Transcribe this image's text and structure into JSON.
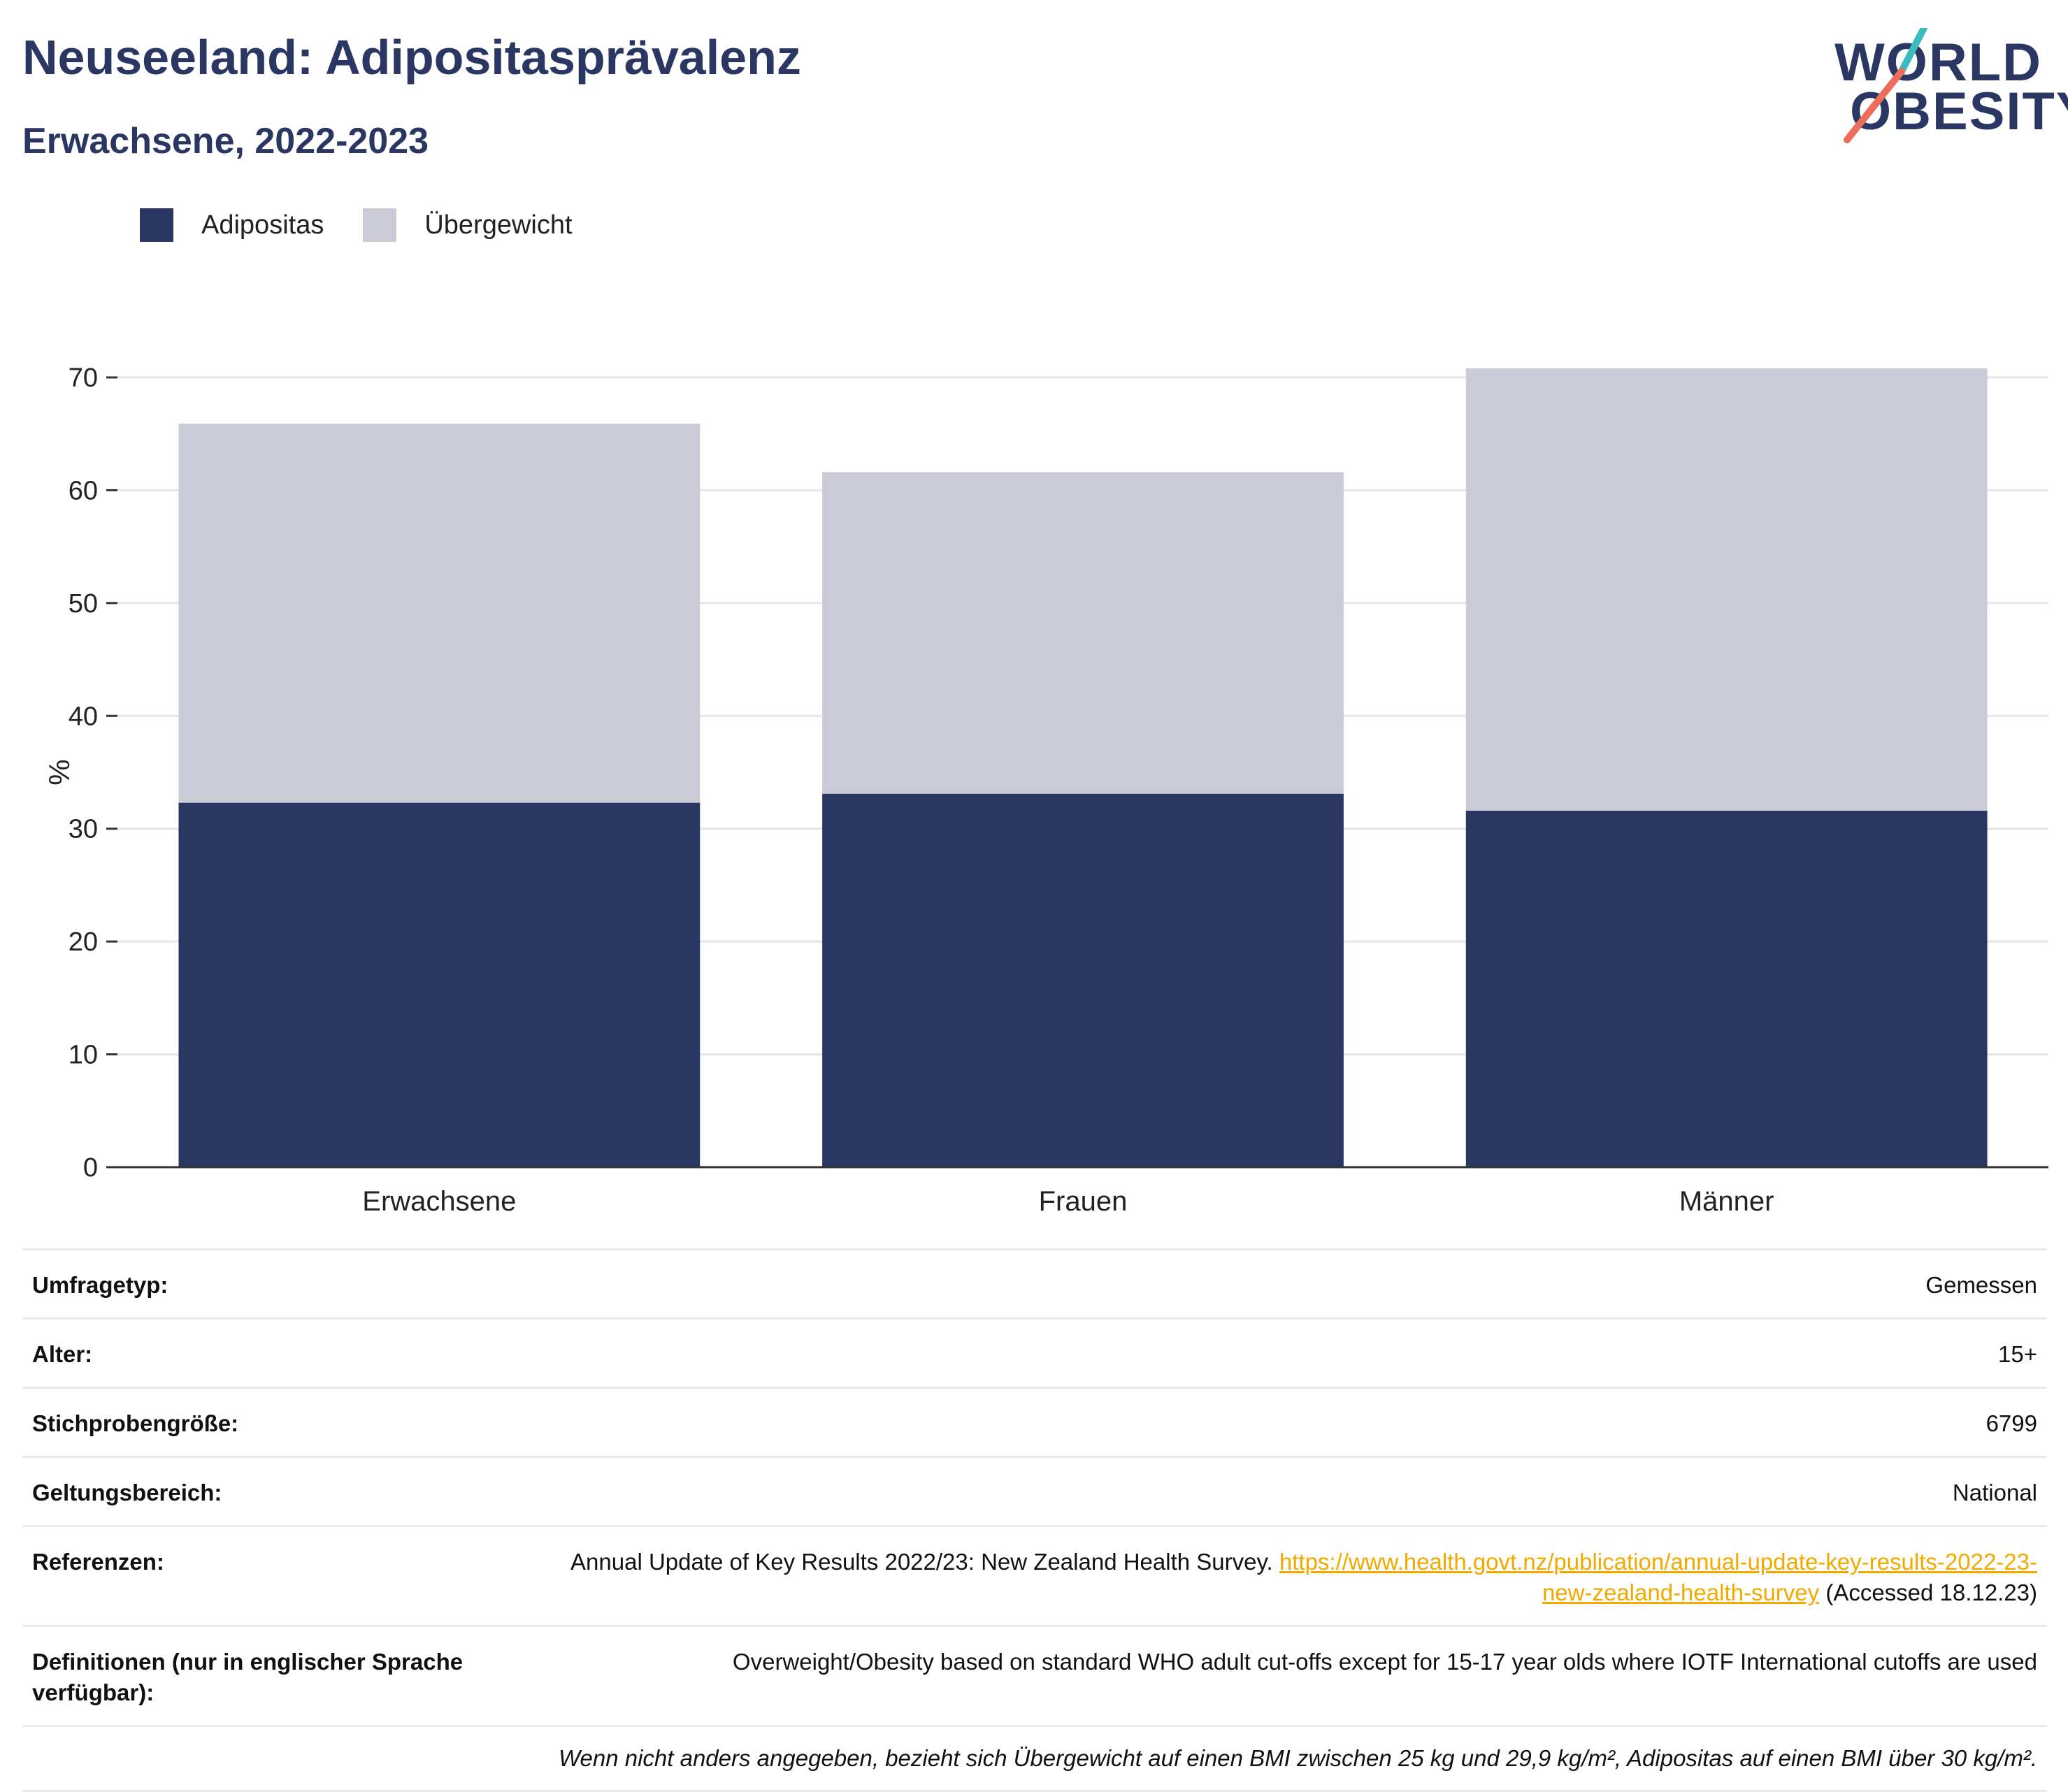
{
  "title": "Neuseeland: Adipositasprävalenz",
  "subtitle": "Erwachsene, 2022-2023",
  "logo": {
    "line1": "WORLD",
    "line2": "OBESITY",
    "colors": {
      "text": "#2b3763",
      "teal": "#3bbcc0",
      "coral": "#ec6e5a"
    }
  },
  "legend": [
    {
      "label": "Adipositas",
      "color": "#2b3763"
    },
    {
      "label": "Übergewicht",
      "color": "#cacbd7"
    }
  ],
  "chart_data": {
    "type": "bar",
    "stacked": true,
    "categories": [
      "Erwachsene",
      "Frauen",
      "Männer"
    ],
    "series": [
      {
        "name": "Adipositas",
        "color": "#2b3763",
        "values": [
          32.3,
          33.1,
          31.6
        ]
      },
      {
        "name": "Übergewicht",
        "color": "#cacbd7",
        "values": [
          33.6,
          28.5,
          39.2
        ]
      }
    ],
    "ylabel": "%",
    "ylim": [
      0,
      70
    ],
    "yticks": [
      "0",
      "10",
      "20",
      "30",
      "40",
      "50",
      "60",
      "70"
    ],
    "grid": true,
    "legend_position": "top-left"
  },
  "info": {
    "rows": [
      {
        "label": "Umfragetyp:",
        "value": "Gemessen"
      },
      {
        "label": "Alter:",
        "value": "15+"
      },
      {
        "label": "Stichprobengröße:",
        "value": "6799"
      },
      {
        "label": "Geltungsbereich:",
        "value": "National"
      }
    ],
    "references": {
      "label": "Referenzen:",
      "text_before": "Annual Update of Key Results 2022/23: New Zealand Health Survey.",
      "link": "https://www.health.govt.nz/publication/annual-update-key-results-2022-23-new-zealand-health-survey",
      "text_after": "(Accessed 18.12.23)"
    },
    "definitions": {
      "label": "Definitionen (nur in englischer Sprache verfügbar):",
      "value": "Overweight/Obesity based on standard WHO adult cut-offs except for 15-17 year olds where IOTF International cutoffs are used"
    },
    "footnote": "Wenn nicht anders angegeben, bezieht sich Übergewicht auf einen BMI zwischen 25 kg und 29,9 kg/m², Adipositas auf einen BMI über 30 kg/m²."
  }
}
